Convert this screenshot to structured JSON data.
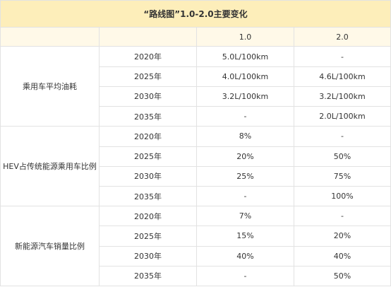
{
  "title": "“路线图”1.0-2.0主要变化",
  "header": {
    "corner": "",
    "col_1": "1.0",
    "col_2": "2.0"
  },
  "groups": [
    {
      "label": "乘用车平均油耗",
      "rows": [
        {
          "year": "2020年",
          "v1": "5.0L/100km",
          "v2": "-"
        },
        {
          "year": "2025年",
          "v1": "4.0L/100km",
          "v2": "4.6L/100km"
        },
        {
          "year": "2030年",
          "v1": "3.2L/100km",
          "v2": "3.2L/100km"
        },
        {
          "year": "2035年",
          "v1": "-",
          "v2": "2.0L/100km"
        }
      ]
    },
    {
      "label": "HEV占传统能源乘用车比例",
      "rows": [
        {
          "year": "2020年",
          "v1": "8%",
          "v2": "-"
        },
        {
          "year": "2025年",
          "v1": "20%",
          "v2": "50%"
        },
        {
          "year": "2030年",
          "v1": "25%",
          "v2": "75%"
        },
        {
          "year": "2035年",
          "v1": "-",
          "v2": "100%"
        }
      ]
    },
    {
      "label": "新能源汽车销量比例",
      "rows": [
        {
          "year": "2020年",
          "v1": "7%",
          "v2": "-"
        },
        {
          "year": "2025年",
          "v1": "15%",
          "v2": "20%"
        },
        {
          "year": "2030年",
          "v1": "40%",
          "v2": "40%"
        },
        {
          "year": "2035年",
          "v1": "-",
          "v2": "50%"
        }
      ]
    }
  ],
  "colors": {
    "title_bg": "#fdeeba",
    "header_bg": "#fff9e8",
    "border": "#e2e2e2",
    "text": "#333333"
  }
}
